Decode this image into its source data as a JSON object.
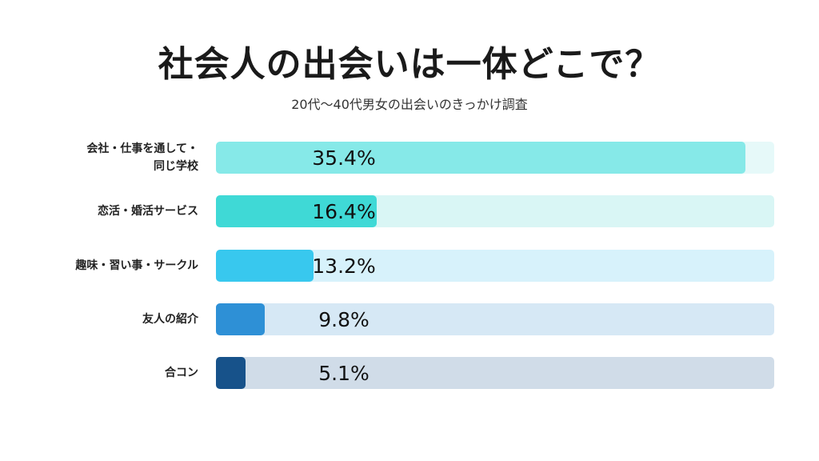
{
  "chart_data": {
    "type": "bar",
    "orientation": "horizontal",
    "title": "社会人の出会いは一体どこで？",
    "subtitle": "20代〜40代男女の出会いのきっかけ調査",
    "categories": [
      "会社・仕事を通して・同じ学校",
      "恋活・婚活サービス",
      "趣味・習い事・サークル",
      "友人の紹介",
      "合コン"
    ],
    "category_lines": [
      [
        "会社・仕事を通して・",
        "同じ学校"
      ],
      [
        "恋活・婚活サービス"
      ],
      [
        "趣味・習い事・サークル"
      ],
      [
        "友人の紹介"
      ],
      [
        "合コン"
      ]
    ],
    "values": [
      35.4,
      16.4,
      13.2,
      9.8,
      5.1
    ],
    "value_labels": [
      "35.4%",
      "16.4%",
      "13.2%",
      "9.8%",
      "5.1%"
    ],
    "fill_fraction": [
      0.948,
      0.288,
      0.175,
      0.087,
      0.053
    ],
    "colors": [
      "#86E9E8",
      "#3FD9D6",
      "#38C8EE",
      "#2E90D6",
      "#17528A"
    ],
    "track_colors": [
      "#E6F9F9",
      "#D9F6F5",
      "#D7F2FB",
      "#D6E8F5",
      "#D0DCE8"
    ]
  }
}
